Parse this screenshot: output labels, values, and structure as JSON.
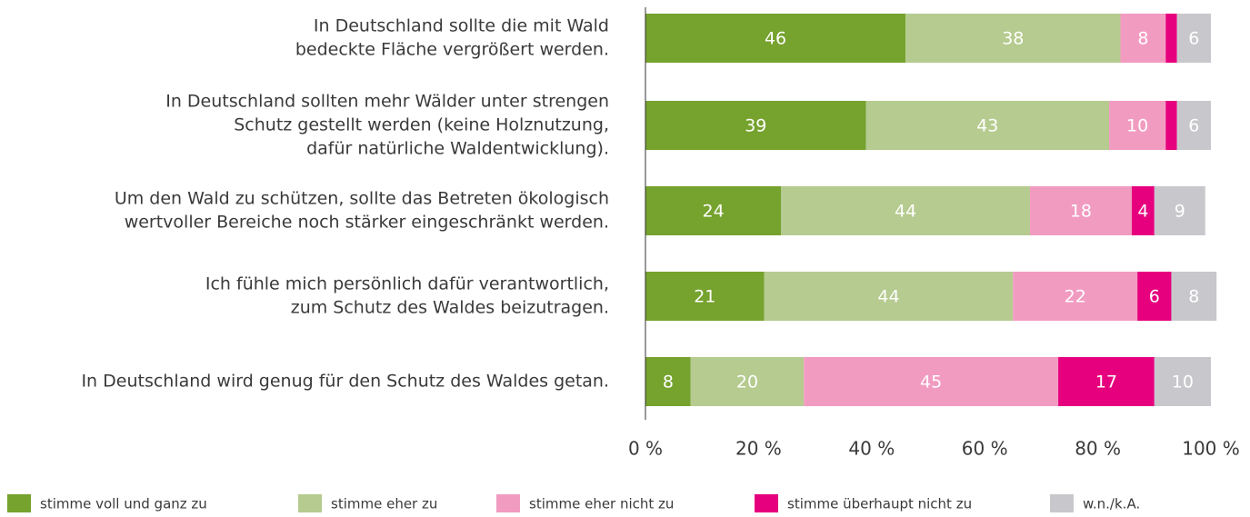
{
  "chart_data": {
    "type": "stacked-bar-horizontal",
    "categories": [
      [
        "In Deutschland sollte die mit Wald",
        "bedeckte Fläche vergrößert werden."
      ],
      [
        "In Deutschland sollten mehr Wälder unter strengen",
        "Schutz gestellt werden (keine Holznutzung,",
        "dafür natürliche Waldentwicklung)."
      ],
      [
        "Um den Wald zu schützen, sollte das Betreten ökologisch",
        "wertvoller Bereiche noch stärker eingeschränkt werden."
      ],
      [
        "Ich fühle mich persönlich dafür verantwortlich,",
        "zum Schutz des Waldes beizutragen."
      ],
      [
        "In Deutschland wird genug für den Schutz des Waldes getan."
      ]
    ],
    "series": [
      {
        "name": "stimme voll und ganz zu",
        "color": "#76a22e",
        "values": [
          46,
          39,
          24,
          21,
          8
        ]
      },
      {
        "name": "stimme eher zu",
        "color": "#b5cb8f",
        "values": [
          38,
          43,
          44,
          44,
          20
        ]
      },
      {
        "name": "stimme eher nicht zu",
        "color": "#f29bc1",
        "values": [
          8,
          10,
          18,
          22,
          45
        ]
      },
      {
        "name": "stimme überhaupt nicht zu",
        "color": "#e6007e",
        "values": [
          2,
          2,
          4,
          6,
          17
        ]
      },
      {
        "name": "w.n./k.A.",
        "color": "#c8c8cc",
        "values": [
          6,
          6,
          9,
          8,
          10
        ]
      }
    ],
    "xlim": [
      0,
      100
    ],
    "xticks": [
      {
        "value": 0,
        "label": "0 %"
      },
      {
        "value": 20,
        "label": "20 %"
      },
      {
        "value": 40,
        "label": "40 %"
      },
      {
        "value": 60,
        "label": "60 %"
      },
      {
        "value": 80,
        "label": "80 %"
      },
      {
        "value": 100,
        "label": "100 %"
      }
    ]
  }
}
